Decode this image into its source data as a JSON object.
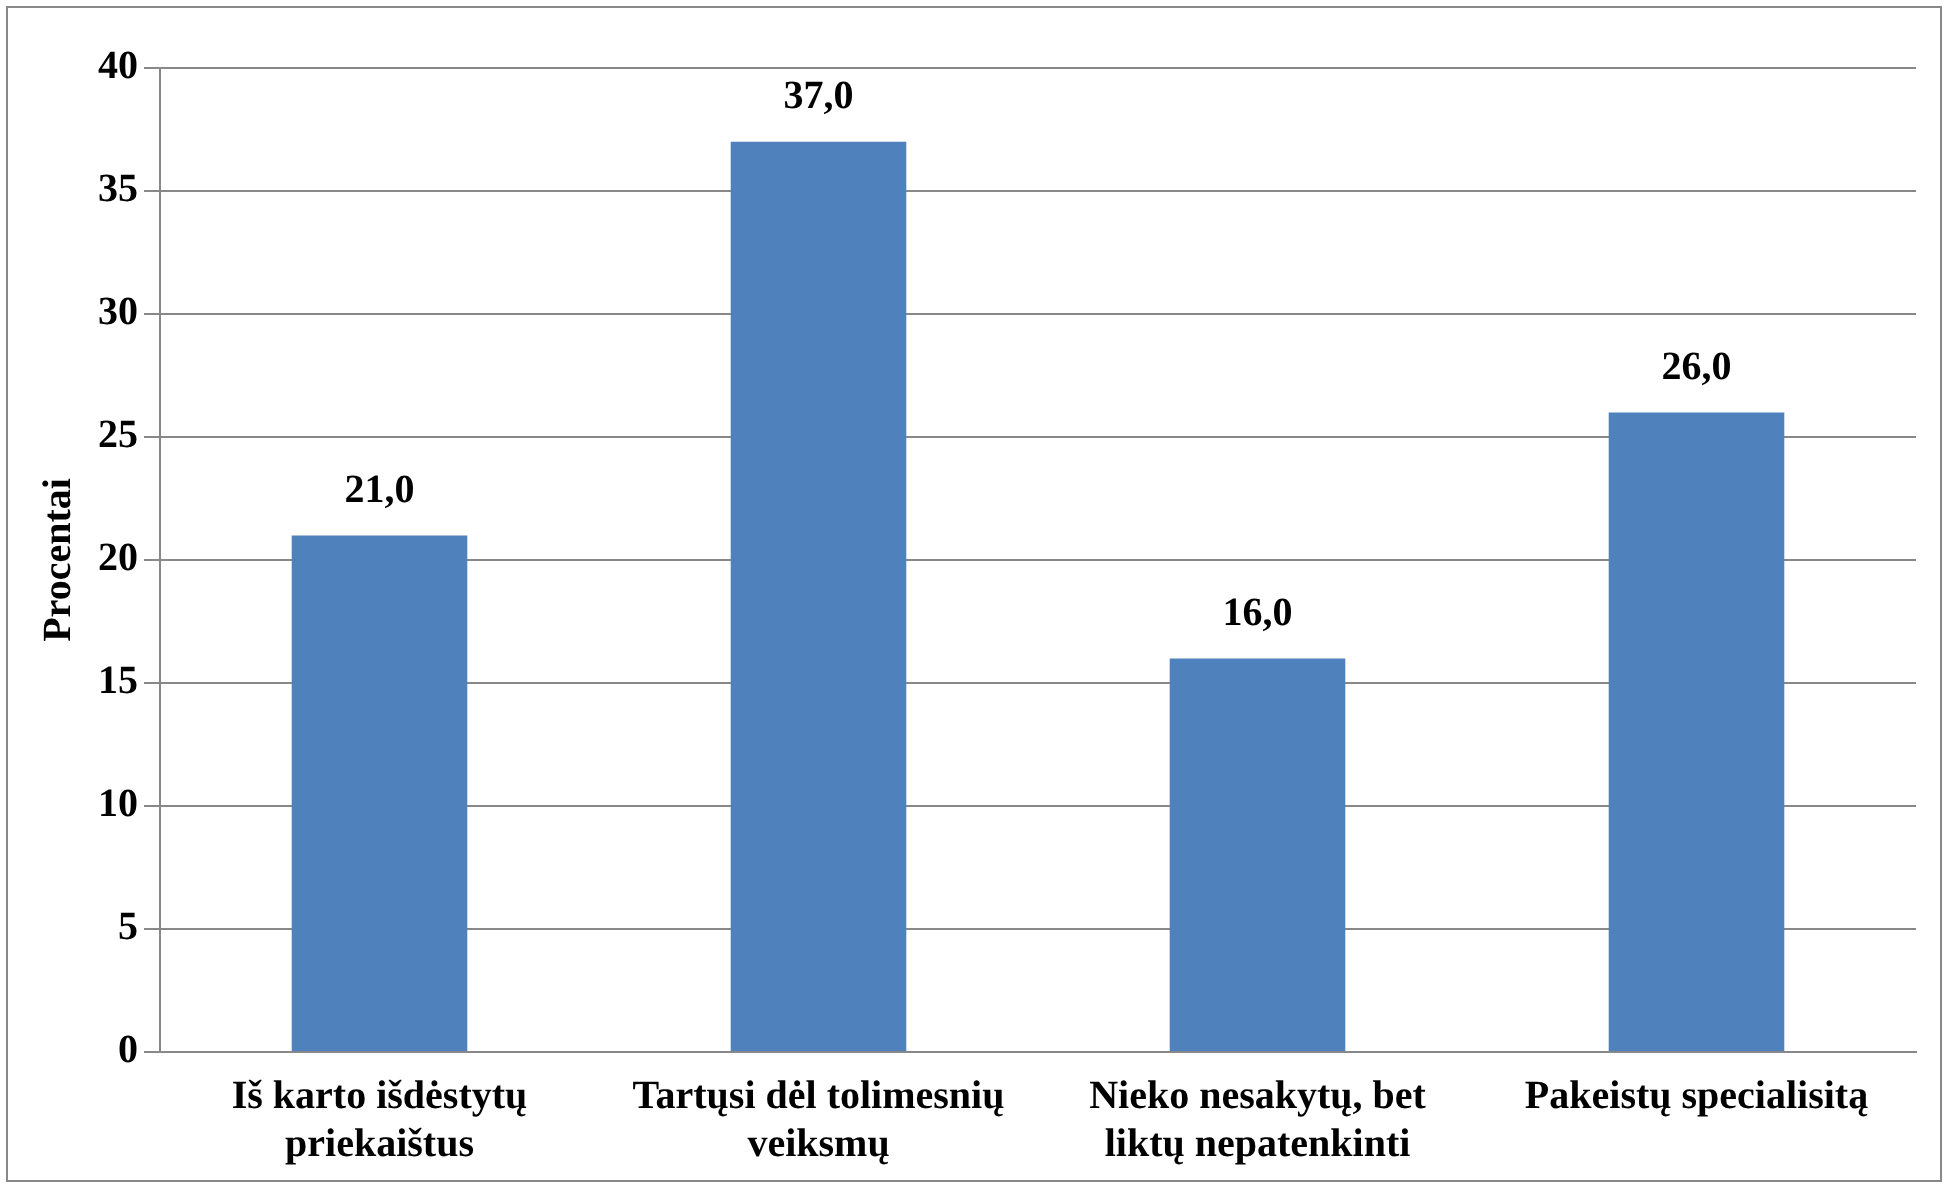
{
  "chart_data": {
    "type": "bar",
    "ylabel": "Procentai",
    "categories": [
      "Iš karto išdėstytų priekaištus",
      "Tartųsi dėl tolimesnių veiksmų",
      "Nieko nesakytų, bet liktų nepatenkinti",
      "Pakeistų specialisitą"
    ],
    "values": [
      21.0,
      37.0,
      16.0,
      26.0
    ],
    "color": "#4f81bd",
    "value_labels": [
      "21,0",
      "37,0",
      "16,0",
      "26,0"
    ],
    "ylim": [
      0,
      40
    ],
    "yticks": [
      0,
      5,
      10,
      15,
      20,
      25,
      30,
      35,
      40
    ],
    "grid": "y",
    "legend": false
  }
}
